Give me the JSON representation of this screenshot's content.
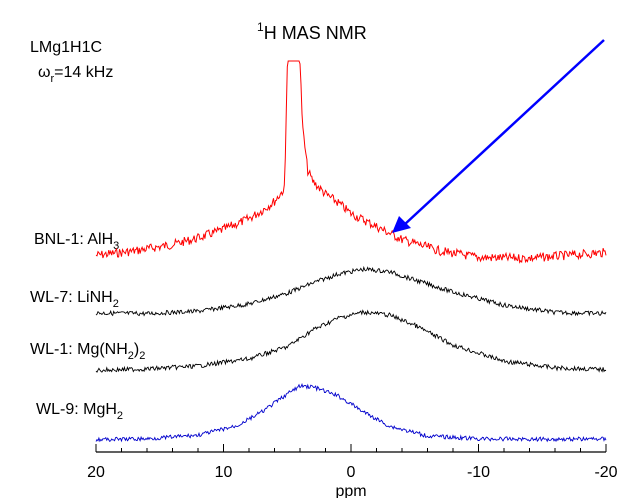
{
  "chart_data": {
    "type": "line",
    "title_sup": "1",
    "title_rest": "H MAS NMR",
    "sample": "LMg1H1C",
    "spin_symbol": "ω",
    "spin_sub": "r",
    "spin_value": "=14 kHz",
    "xlabel": "ppm",
    "xlim": [
      20,
      -20
    ],
    "xticks": [
      "20",
      "10",
      "0",
      "-10",
      "-20"
    ],
    "arrow_color": "#0000ff",
    "series": [
      {
        "label_parts": [
          {
            "t": "BNL-1: AlH"
          },
          {
            "t": "3",
            "sub": true
          }
        ],
        "color": "#ff0000",
        "x": [
          20,
          17,
          14,
          12,
          10,
          8,
          7,
          6,
          5.2,
          5.0,
          4.6,
          4.4,
          4.0,
          3.8,
          3.4,
          3,
          2,
          1,
          0,
          -2,
          -4,
          -7,
          -10,
          -14,
          -17,
          -20
        ],
        "y": [
          0.12,
          0.18,
          0.27,
          0.36,
          0.48,
          0.63,
          0.74,
          0.87,
          1.05,
          2.8,
          3.2,
          3.2,
          2.8,
          1.9,
          1.3,
          1.15,
          0.97,
          0.85,
          0.7,
          0.52,
          0.34,
          0.18,
          0.09,
          0.08,
          0.12,
          0.16
        ]
      },
      {
        "label_parts": [
          {
            "t": "WL-7: LiNH"
          },
          {
            "t": "2",
            "sub": true
          }
        ],
        "color": "#000000",
        "x": [
          20,
          16,
          12,
          8,
          5,
          3,
          1,
          -1,
          -3,
          -5,
          -8,
          -12,
          -16,
          -20
        ],
        "y": [
          0.05,
          0.04,
          0.08,
          0.2,
          0.38,
          0.55,
          0.7,
          0.78,
          0.74,
          0.6,
          0.4,
          0.18,
          0.06,
          0.04
        ]
      },
      {
        "label_parts": [
          {
            "t": "WL-1: Mg(NH"
          },
          {
            "t": "2",
            "sub": true
          },
          {
            "t": ")"
          },
          {
            "t": "2",
            "sub": true
          }
        ],
        "color": "#000000",
        "x": [
          20,
          16,
          12,
          8,
          5,
          3,
          1,
          -1,
          -3,
          -5,
          -8,
          -12,
          -16,
          -20
        ],
        "y": [
          0.03,
          0.05,
          0.1,
          0.22,
          0.42,
          0.7,
          0.9,
          1.0,
          0.95,
          0.78,
          0.45,
          0.18,
          0.07,
          0.04
        ]
      },
      {
        "label_parts": [
          {
            "t": "WL-9: MgH"
          },
          {
            "t": "2",
            "sub": true
          }
        ],
        "color": "#0000cc",
        "x": [
          20,
          16,
          12,
          9,
          7,
          5,
          4,
          3,
          1,
          -1,
          -3,
          -6,
          -10,
          -15,
          -20
        ],
        "y": [
          0.01,
          0.03,
          0.12,
          0.35,
          0.7,
          1.15,
          1.35,
          1.33,
          1.1,
          0.7,
          0.35,
          0.1,
          0.03,
          0.02,
          0.03
        ]
      }
    ]
  }
}
